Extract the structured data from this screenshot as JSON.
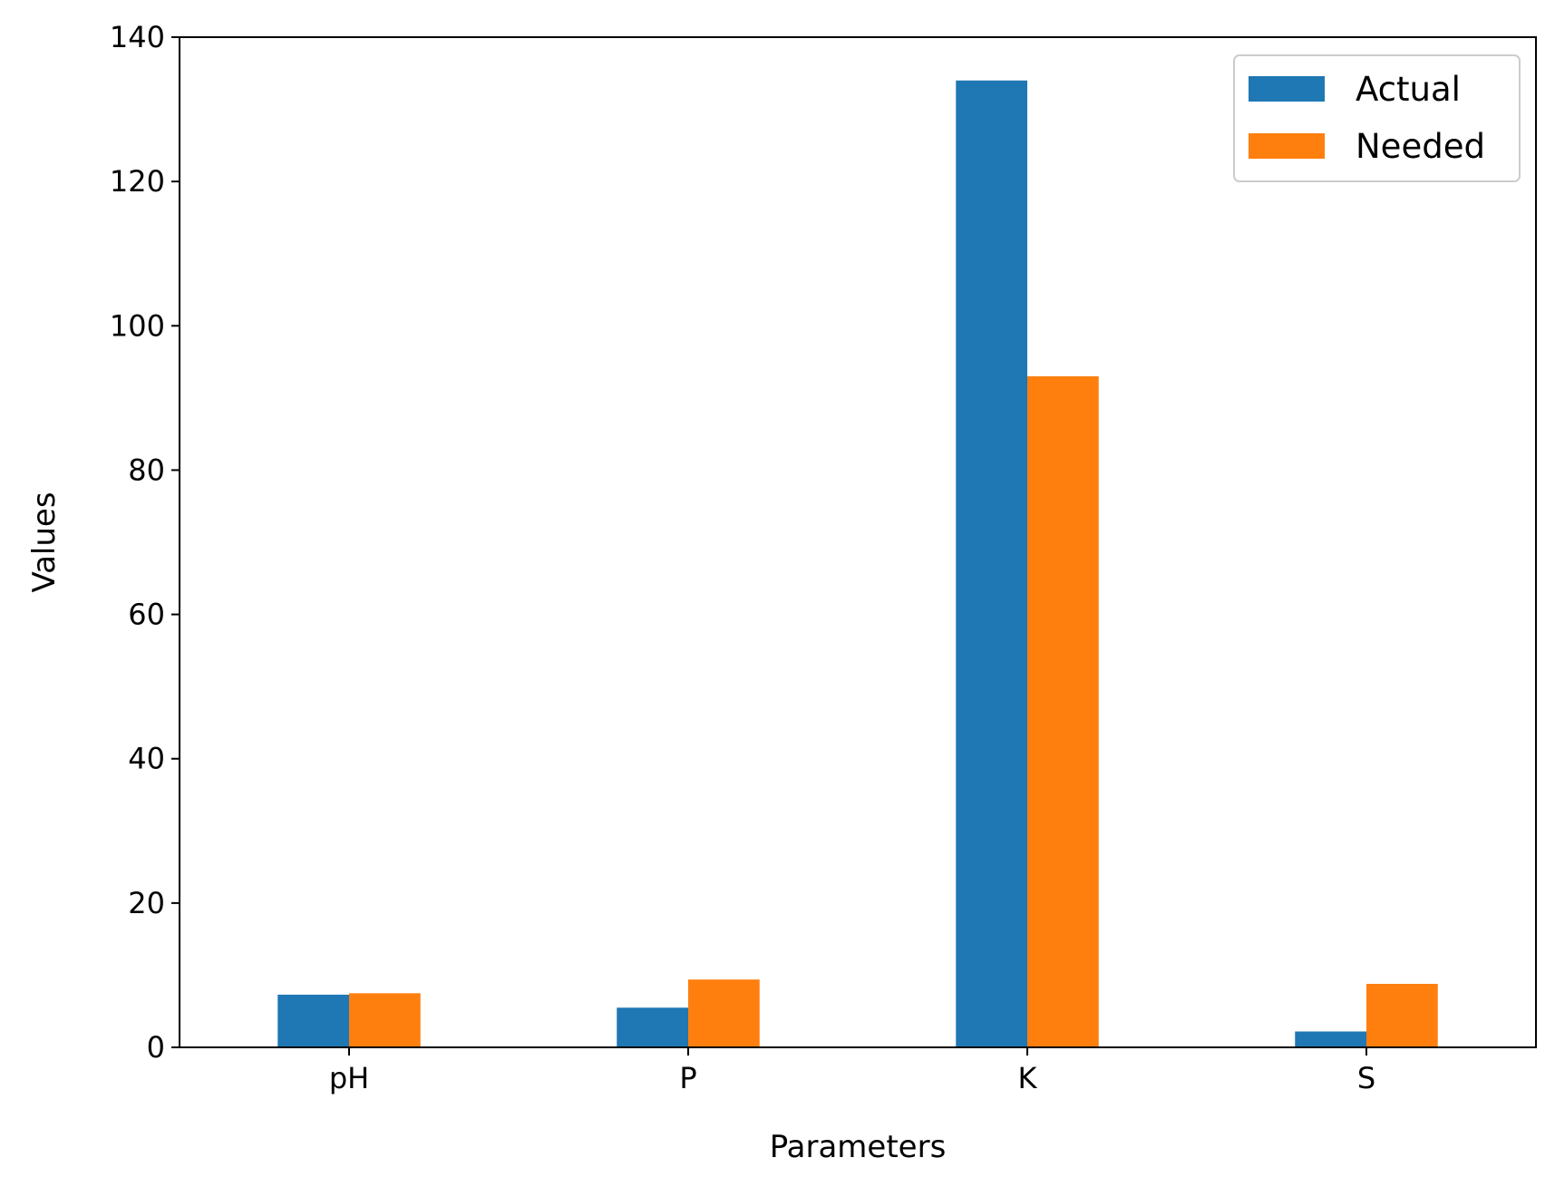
{
  "chart_data": {
    "type": "bar",
    "title": "",
    "xlabel": "Parameters",
    "ylabel": "Values",
    "categories": [
      "pH",
      "P",
      "K",
      "S"
    ],
    "series": [
      {
        "name": "Actual",
        "color": "#1f77b4",
        "values": [
          7.3,
          5.5,
          134,
          2.2
        ]
      },
      {
        "name": "Needed",
        "color": "#ff7f0e",
        "values": [
          7.5,
          9.4,
          93,
          8.8
        ]
      }
    ],
    "ylim": [
      0,
      140
    ],
    "yticks": [
      "0",
      "20",
      "40",
      "60",
      "80",
      "100",
      "120",
      "140"
    ],
    "grid": false,
    "legend_position": "top-right"
  }
}
